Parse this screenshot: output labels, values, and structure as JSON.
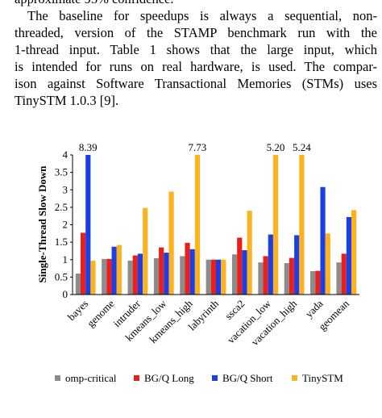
{
  "text": {
    "lines": [
      "approximate 95% confidence.",
      "The baseline for speedups is always a sequential, non-",
      "threaded, version of the STAMP benchmark run with the",
      "1-thread input. Table 1 shows that the large input, which",
      "is intended for runs on real hardware, is used. The compar-",
      "ison against Software Transactional Memories (STMs) uses",
      "TinySTM 1.0.3 [9]."
    ]
  },
  "chart_data": {
    "type": "bar",
    "ylabel": "Single-Thread Slow Down",
    "categories": [
      "bayes",
      "genome",
      "intruder",
      "kmeans_low",
      "kmeans_high",
      "labyrinth",
      "ssca2",
      "vacation_low",
      "vacation_high",
      "yada",
      "geomean"
    ],
    "series": [
      {
        "name": "omp-critical",
        "color": "#8c8c8c",
        "values": [
          0.6,
          1.02,
          0.97,
          1.04,
          1.1,
          1.0,
          1.15,
          0.92,
          0.9,
          0.67,
          0.92
        ]
      },
      {
        "name": "BG/Q Long",
        "color": "#e8201c",
        "values": [
          1.77,
          1.02,
          1.12,
          1.35,
          1.48,
          1.0,
          1.63,
          1.1,
          1.05,
          0.68,
          1.17
        ]
      },
      {
        "name": "BG/Q Short",
        "color": "#1b3fe6",
        "values": [
          8.39,
          1.37,
          1.17,
          1.2,
          1.3,
          1.0,
          1.27,
          1.72,
          1.7,
          3.08,
          2.22
        ],
        "value_labels": [
          "8.39",
          null,
          null,
          null,
          null,
          null,
          null,
          null,
          null,
          null,
          null
        ]
      },
      {
        "name": "TinySTM",
        "color": "#ffb21f",
        "values": [
          0.97,
          1.42,
          2.48,
          2.95,
          7.73,
          1.0,
          2.4,
          5.2,
          5.24,
          1.75,
          2.42
        ],
        "value_labels": [
          null,
          null,
          null,
          null,
          "7.73",
          null,
          null,
          "5.20",
          "5.24",
          null,
          null
        ]
      }
    ],
    "ylim": [
      0,
      4
    ],
    "yticks": [
      0,
      0.5,
      1,
      1.5,
      2,
      2.5,
      3,
      3.5,
      4
    ],
    "grid": false,
    "legend": "bottom"
  }
}
